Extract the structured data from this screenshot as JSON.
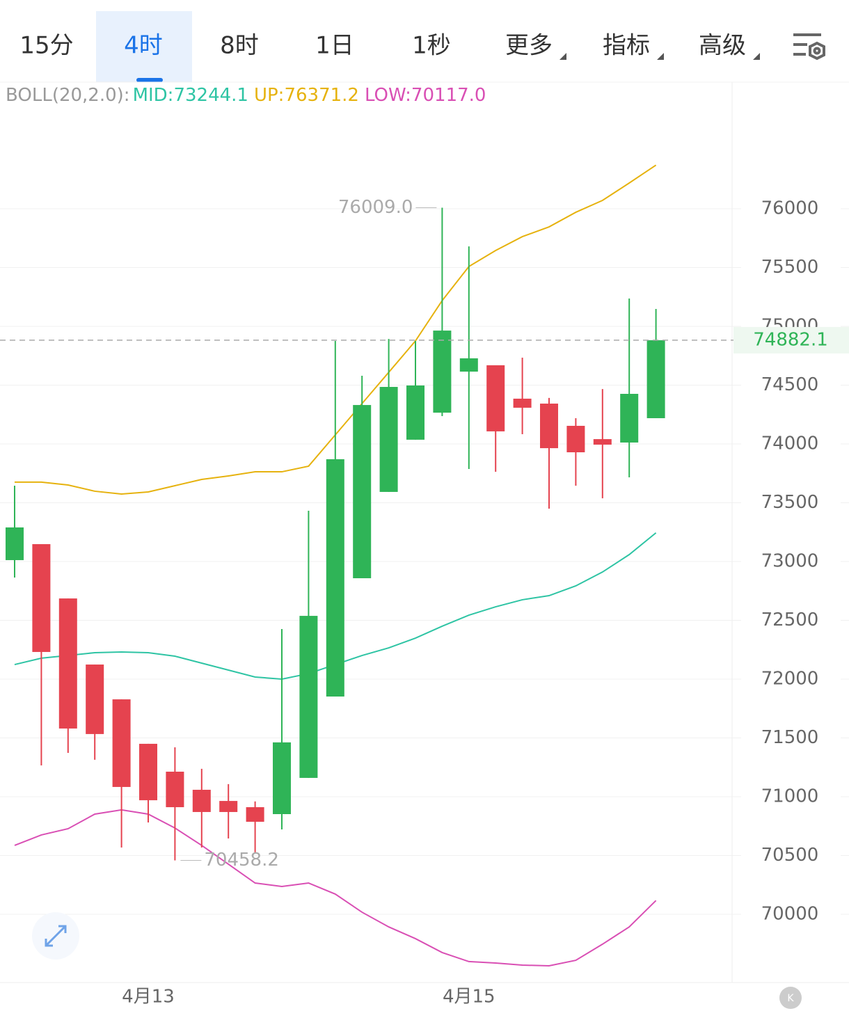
{
  "tabs": [
    "15分",
    "4时",
    "8时",
    "1日",
    "1秒",
    "更多",
    "指标",
    "高级"
  ],
  "active_tab": "4时",
  "chart_data": {
    "type": "candlestick",
    "indicator": "BOLL(20,2.0):",
    "categories": [
      null,
      null,
      null,
      null,
      null,
      "4月13",
      null,
      null,
      null,
      null,
      null,
      null,
      null,
      null,
      null,
      null,
      null,
      "4月15",
      null,
      null,
      null,
      null,
      null,
      null,
      null
    ],
    "open": [
      73012,
      73148,
      72686,
      72124,
      71828,
      71450,
      71213,
      71059,
      70964,
      70911,
      70852,
      71160,
      71852,
      72858,
      73592,
      74036,
      74266,
      74615,
      74669,
      74385,
      74343,
      74154,
      74041,
      74012,
      74219
    ],
    "high": [
      73645,
      73148,
      72686,
      72124,
      71828,
      71450,
      71420,
      71237,
      71107,
      70960,
      72426,
      73432,
      74876,
      74580,
      74893,
      74876,
      76009.0,
      75680,
      74669,
      74734,
      74391,
      74219,
      74467,
      75237,
      75148
    ],
    "low": [
      72864,
      71266,
      71373,
      71314,
      70568,
      70781,
      70458.2,
      70568,
      70645,
      70527,
      70722,
      71160,
      71852,
      72858,
      73592,
      74036,
      74237,
      73787,
      73763,
      74083,
      73450,
      73645,
      73538,
      73716,
      74219
    ],
    "close": [
      73290,
      72231,
      71580,
      71533,
      71083,
      70970,
      70911,
      70870,
      70870,
      70787,
      71462,
      72538,
      73870,
      74331,
      74485,
      74497,
      74964,
      74728,
      74107,
      74308,
      73964,
      73929,
      73994,
      74426,
      74882.1
    ],
    "up_color": "#2fb457",
    "down_color": "#e5434f",
    "series": [
      {
        "name": "MID:73244.1",
        "color": "#2ec4a4",
        "values": [
          72124,
          72178,
          72201,
          72225,
          72231,
          72225,
          72195,
          72136,
          72077,
          72018,
          72000,
          72047,
          72124,
          72201,
          72266,
          72349,
          72450,
          72544,
          72615,
          72675,
          72710,
          72793,
          72911,
          73059,
          73244.1
        ]
      },
      {
        "name": "UP:76371.2",
        "color": "#e6b20e",
        "values": [
          73675,
          73675,
          73651,
          73598,
          73574,
          73592,
          73645,
          73698,
          73728,
          73763,
          73763,
          73811,
          74077,
          74343,
          74609,
          74876,
          75219,
          75509,
          75645,
          75763,
          75846,
          75970,
          76071,
          76219,
          76371.2
        ]
      },
      {
        "name": "LOW:70117.0",
        "color": "#d94fb4",
        "values": [
          70586,
          70675,
          70728,
          70852,
          70888,
          70852,
          70734,
          70586,
          70426,
          70266,
          70237,
          70266,
          70172,
          70018,
          69893,
          69793,
          69675,
          69598,
          69586,
          69568,
          69562,
          69609,
          69746,
          69893,
          70117.0
        ]
      }
    ],
    "annotations": [
      {
        "value": 76009.0,
        "label": "76009.0"
      },
      {
        "value": 70458.2,
        "label": "70458.2"
      }
    ],
    "last_price": 74882.1,
    "ylim": [
      69420,
      77077
    ],
    "yticks": [
      70000,
      70500,
      71000,
      71500,
      72000,
      72500,
      73000,
      73500,
      74000,
      74500,
      75000,
      75500,
      76000
    ],
    "grid": true
  }
}
